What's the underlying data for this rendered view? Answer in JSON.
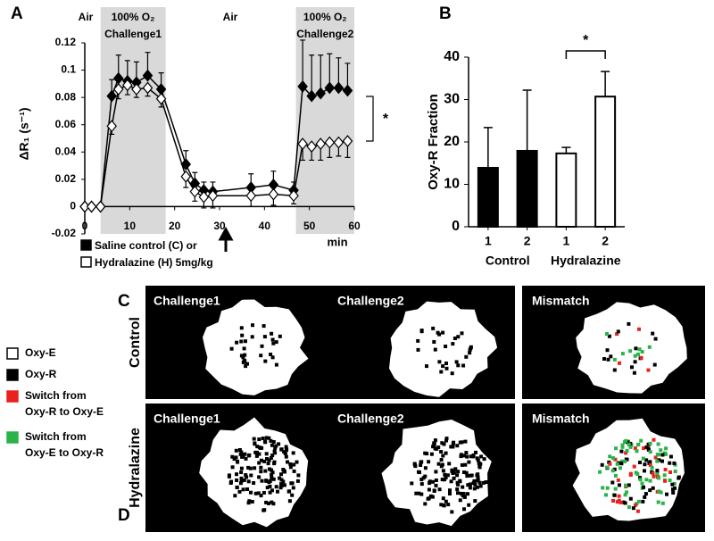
{
  "chart_data": [
    {
      "type": "line",
      "panel": "A",
      "x": [
        0,
        1.5,
        3.5,
        6,
        7.5,
        9.5,
        11.5,
        14,
        17,
        22.5,
        24.5,
        26.5,
        28.5,
        37,
        42,
        46.5,
        48.5,
        50.5,
        52.5,
        54.5,
        56.5,
        58.5
      ],
      "series": [
        {
          "name": "Saline control (C) or",
          "color": "#000000",
          "fill": "#000000",
          "error_direction": "up",
          "values": [
            0,
            0,
            0,
            0.081,
            0.094,
            0.092,
            0.091,
            0.096,
            0.086,
            0.031,
            0.017,
            0.012,
            0.011,
            0.014,
            0.016,
            0.012,
            0.088,
            0.081,
            0.083,
            0.087,
            0.087,
            0.085
          ],
          "errors": [
            0,
            0,
            0,
            0.012,
            0.017,
            0.015,
            0.015,
            0.017,
            0.012,
            0.01,
            0.008,
            0.006,
            0.007,
            0.01,
            0.01,
            0.006,
            0.034,
            0.03,
            0.028,
            0.025,
            0.022,
            0.02
          ]
        },
        {
          "name": "Hydralazine (H) 5mg/kg",
          "color": "#000000",
          "fill": "#ffffff",
          "error_direction": "down",
          "values": [
            0,
            0,
            0,
            0.059,
            0.086,
            0.089,
            0.086,
            0.087,
            0.079,
            0.022,
            0.011,
            0.007,
            0.008,
            0.008,
            0.009,
            0.008,
            0.046,
            0.044,
            0.046,
            0.047,
            0.047,
            0.048
          ],
          "errors": [
            0,
            0,
            0,
            0.006,
            0.007,
            0.007,
            0.006,
            0.006,
            0.006,
            0.008,
            0.007,
            0.008,
            0.009,
            0.008,
            0.008,
            0.006,
            0.012,
            0.01,
            0.012,
            0.011,
            0.01,
            0.012
          ]
        }
      ],
      "xlim": [
        0,
        60
      ],
      "xticks": [
        0,
        10,
        20,
        30,
        40,
        50,
        60
      ],
      "ylim": [
        -0.02,
        0.12
      ],
      "yticks": [
        -0.02,
        0,
        0.02,
        0.04,
        0.06,
        0.08,
        0.1,
        0.12
      ],
      "xlabel": "min",
      "ylabel": "ΔR₁ (s⁻¹)",
      "shaded": [
        {
          "range": [
            3.5,
            18
          ],
          "label": [
            "100% O₂",
            "Challenge1"
          ],
          "color": "#d9d9d9"
        },
        {
          "range": [
            47,
            60
          ],
          "label": [
            "100% O₂",
            "Challenge2"
          ],
          "color": "#d9d9d9"
        }
      ],
      "annotations": [
        "Air",
        "Air"
      ],
      "significance": "*"
    },
    {
      "type": "bar",
      "panel": "B",
      "categories": [
        "1",
        "2",
        "1",
        "2"
      ],
      "groups": [
        "Control",
        "Hydralazine"
      ],
      "values": [
        13.9,
        17.9,
        17.3,
        30.7
      ],
      "errors": [
        9.5,
        14.3,
        1.4,
        5.9
      ],
      "colors": [
        "#000000",
        "#000000",
        "#ffffff",
        "#ffffff"
      ],
      "ylim": [
        0,
        40
      ],
      "yticks": [
        0,
        10,
        20,
        30,
        40
      ],
      "ylabel": "Oxy-R Fraction",
      "significance": "*"
    }
  ],
  "maps": {
    "rows": [
      {
        "letter": "C",
        "label": "Control",
        "titles": [
          "Challenge1",
          "Challenge2",
          "Mismatch"
        ]
      },
      {
        "letter": "D",
        "label": "Hydralazine",
        "titles": [
          "Challenge1",
          "Challenge2",
          "Mismatch"
        ]
      }
    ],
    "legend": [
      {
        "label": [
          "Oxy-E"
        ],
        "color": "#ffffff"
      },
      {
        "label": [
          "Oxy-R"
        ],
        "color": "#000000"
      },
      {
        "label": [
          "Switch from",
          "Oxy-R to Oxy-E"
        ],
        "color": "#e8231f"
      },
      {
        "label": [
          "Switch from",
          "Oxy-E to Oxy-R"
        ],
        "color": "#2bb34a"
      }
    ]
  }
}
